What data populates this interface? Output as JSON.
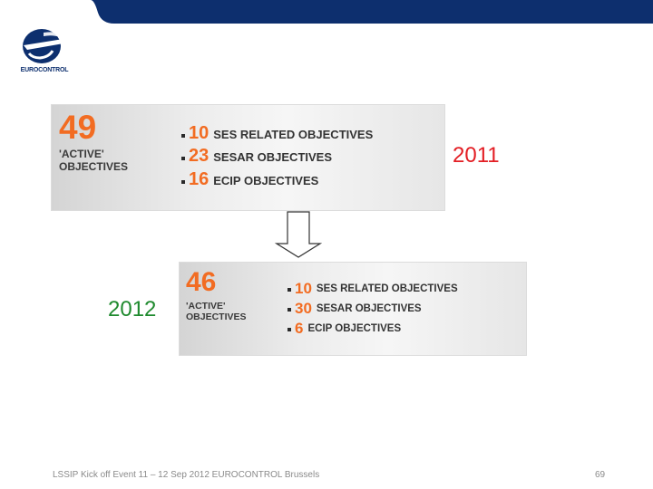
{
  "brand": {
    "logo_text": "EUROCONTROL",
    "colors": {
      "navy": "#0d2f6e",
      "orange": "#f26c22",
      "red": "#e31e24",
      "green": "#1f8a2e"
    }
  },
  "panel_2011": {
    "total": "49",
    "label": "'ACTIVE' OBJECTIVES",
    "items": [
      {
        "number": "10",
        "text": "SES RELATED OBJECTIVES"
      },
      {
        "number": "23",
        "text": "SESAR OBJECTIVES"
      },
      {
        "number": "16",
        "text": "ECIP OBJECTIVES"
      }
    ]
  },
  "panel_2012": {
    "total": "46",
    "label": "'ACTIVE' OBJECTIVES",
    "items": [
      {
        "number": "10",
        "text": "SES RELATED OBJECTIVES"
      },
      {
        "number": "30",
        "text": "SESAR OBJECTIVES"
      },
      {
        "number": "6",
        "text": "ECIP OBJECTIVES"
      }
    ]
  },
  "year_labels": {
    "first": "2011",
    "second": "2012"
  },
  "footer": {
    "text": "LSSIP Kick off Event 11 – 12 Sep 2012 EUROCONTROL Brussels",
    "page": "69"
  },
  "icons": [
    "eurocontrol-logo-icon",
    "down-arrow-icon",
    "bullet-icon"
  ]
}
